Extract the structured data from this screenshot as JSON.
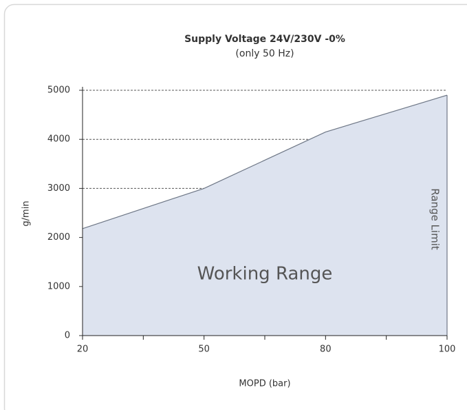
{
  "chart_data": {
    "type": "area",
    "title": "Supply Voltage 24V/230V -0%",
    "subtitle": "(only 50 Hz)",
    "xlabel": "MOPD (bar)",
    "ylabel": "g/min",
    "annotations": [
      "Working Range",
      "Range Limit"
    ],
    "categories": [
      "20",
      null,
      "50",
      null,
      "80",
      null,
      "100"
    ],
    "values": [
      2180,
      2590,
      3000,
      3575,
      4150,
      4525,
      4900
    ],
    "color": "#dde3ef",
    "line_color": "#6d7685",
    "ylim": [
      0,
      5000
    ],
    "yticks": [
      0,
      1000,
      2000,
      3000,
      4000,
      5000
    ],
    "grid": true
  }
}
